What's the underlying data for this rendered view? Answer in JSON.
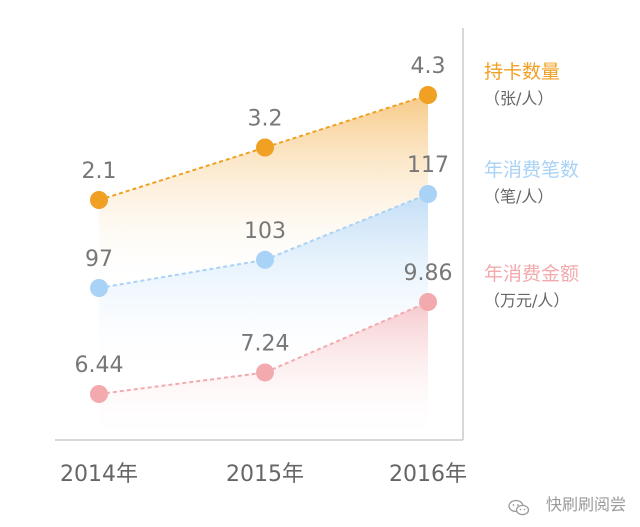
{
  "chart_data": {
    "type": "line",
    "categories": [
      "2014年",
      "2015年",
      "2016年"
    ],
    "series": [
      {
        "name": "持卡数量",
        "unit": "（张/人）",
        "values": [
          2.1,
          3.2,
          4.3
        ],
        "value_labels": [
          "2.1",
          "3.2",
          "4.3"
        ],
        "color": "#f0a022",
        "fill_top": "#f6c070"
      },
      {
        "name": "年消费笔数",
        "unit": "（笔/人）",
        "values": [
          97,
          103,
          117
        ],
        "value_labels": [
          "97",
          "103",
          "117"
        ],
        "color": "#a9d2f7",
        "fill_top": "#b8dbfa"
      },
      {
        "name": "年消费金额",
        "unit": "（万元/人）",
        "values": [
          6.44,
          7.24,
          9.86
        ],
        "value_labels": [
          "6.44",
          "7.24",
          "9.86"
        ],
        "color": "#f3aaae",
        "fill_top": "#f6c0c3"
      }
    ],
    "legend": "right",
    "grid": false
  },
  "watermark": {
    "text": "快刷刷阅尝",
    "icon": "wechat-icon"
  },
  "colors": {
    "axis": "#cccccc",
    "label": "#666666",
    "value_label": "#777777"
  }
}
